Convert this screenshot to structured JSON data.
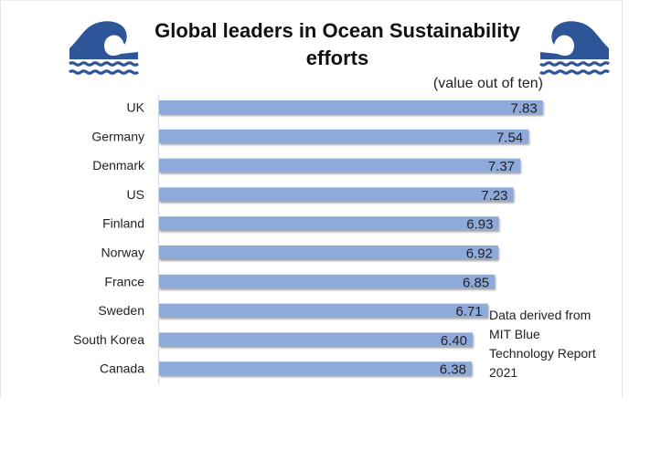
{
  "chart_data": {
    "type": "bar",
    "orientation": "horizontal",
    "title": "Global leaders in Ocean Sustainability efforts",
    "title_lines": [
      "Global leaders in Ocean Sustainability",
      "efforts"
    ],
    "subtitle": "(value out of ten)",
    "xlabel": "",
    "ylabel": "",
    "categories": [
      "UK",
      "Germany",
      "Denmark",
      "US",
      "Finland",
      "Norway",
      "France",
      "Sweden",
      "South Korea",
      "Canada"
    ],
    "values": [
      7.83,
      7.54,
      7.37,
      7.23,
      6.93,
      6.92,
      6.85,
      6.71,
      6.4,
      6.38
    ],
    "value_labels": [
      "7.83",
      "7.54",
      "7.37",
      "7.23",
      "6.93",
      "6.92",
      "6.85",
      "6.71",
      "6.40",
      "6.38"
    ],
    "xlim": [
      0,
      10
    ],
    "grid": false,
    "legend": "none",
    "bar_color": "#8eaadb",
    "annotation": {
      "lines": [
        "Data derived from",
        "MIT Blue",
        "Technology Report",
        "2021"
      ],
      "placement": "bottom-right"
    }
  },
  "decorations": {
    "left_icon": "wave-icon",
    "right_icon": "wave-icon",
    "icon_color": "#2e5597"
  }
}
